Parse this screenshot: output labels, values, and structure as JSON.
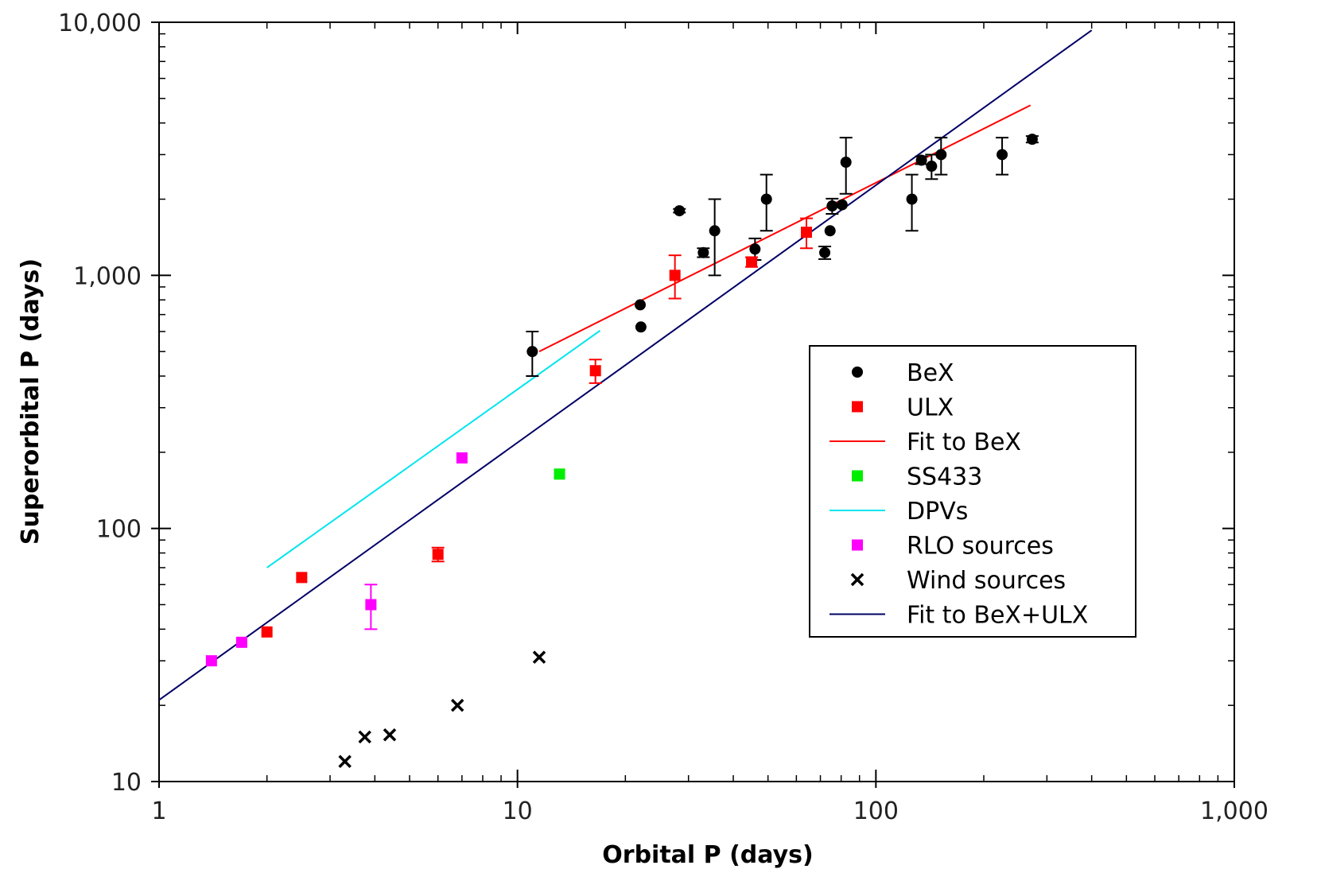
{
  "chart_data": {
    "type": "scatter",
    "title": "",
    "xlabel": "Orbital P (days)",
    "ylabel": "Superorbital P (days)",
    "xscale": "log",
    "yscale": "log",
    "xlim": [
      1,
      1000
    ],
    "ylim": [
      10,
      10000
    ],
    "x_ticks": [
      {
        "value": 1,
        "label": "1"
      },
      {
        "value": 10,
        "label": "10"
      },
      {
        "value": 100,
        "label": "100"
      },
      {
        "value": 1000,
        "label": "1,000"
      }
    ],
    "y_ticks": [
      {
        "value": 10,
        "label": "10"
      },
      {
        "value": 100,
        "label": "100"
      },
      {
        "value": 1000,
        "label": "1,000"
      },
      {
        "value": 10000,
        "label": "10,000"
      }
    ],
    "grid": false,
    "legend_position": "right",
    "series": [
      {
        "name": "BeX",
        "kind": "points",
        "marker": "circle",
        "color": "#000000",
        "points": [
          {
            "x": 11.0,
            "y": 500,
            "yerr_low": 400,
            "yerr_high": 600
          },
          {
            "x": 22.0,
            "y": 765
          },
          {
            "x": 22.1,
            "y": 625
          },
          {
            "x": 28.3,
            "y": 1800,
            "yerr_low": 1770,
            "yerr_high": 1830
          },
          {
            "x": 33.0,
            "y": 1230,
            "yerr_low": 1180,
            "yerr_high": 1280
          },
          {
            "x": 35.5,
            "y": 1500,
            "yerr_low": 1000,
            "yerr_high": 2000
          },
          {
            "x": 46.0,
            "y": 1270,
            "yerr_low": 1150,
            "yerr_high": 1400
          },
          {
            "x": 49.5,
            "y": 2000,
            "yerr_low": 1500,
            "yerr_high": 2500
          },
          {
            "x": 72.0,
            "y": 1230,
            "yerr_low": 1160,
            "yerr_high": 1300
          },
          {
            "x": 74.5,
            "y": 1500
          },
          {
            "x": 75.5,
            "y": 1880,
            "yerr_low": 1750,
            "yerr_high": 2010
          },
          {
            "x": 80.5,
            "y": 1900
          },
          {
            "x": 82.5,
            "y": 2800,
            "yerr_low": 2100,
            "yerr_high": 3500
          },
          {
            "x": 126.0,
            "y": 2000,
            "yerr_low": 1500,
            "yerr_high": 2500
          },
          {
            "x": 134.0,
            "y": 2850,
            "yerr_low": 2750,
            "yerr_high": 2950
          },
          {
            "x": 143.0,
            "y": 2700,
            "yerr_low": 2400,
            "yerr_high": 3000
          },
          {
            "x": 152.0,
            "y": 3000,
            "yerr_low": 2500,
            "yerr_high": 3500
          },
          {
            "x": 225.0,
            "y": 3000,
            "yerr_low": 2500,
            "yerr_high": 3500
          },
          {
            "x": 273.0,
            "y": 3450,
            "yerr_low": 3350,
            "yerr_high": 3550
          }
        ]
      },
      {
        "name": "ULX",
        "kind": "points",
        "marker": "square",
        "color": "#ff0000",
        "points": [
          {
            "x": 2.0,
            "y": 39
          },
          {
            "x": 2.5,
            "y": 64
          },
          {
            "x": 6.0,
            "y": 79,
            "yerr_low": 74,
            "yerr_high": 84
          },
          {
            "x": 16.5,
            "y": 420,
            "yerr_low": 375,
            "yerr_high": 465
          },
          {
            "x": 27.5,
            "y": 1000,
            "yerr_low": 810,
            "yerr_high": 1200
          },
          {
            "x": 45.0,
            "y": 1130,
            "yerr_low": 1080,
            "yerr_high": 1180
          },
          {
            "x": 64.0,
            "y": 1480,
            "yerr_low": 1280,
            "yerr_high": 1680
          }
        ]
      },
      {
        "name": "Fit to BeX",
        "kind": "line",
        "color": "#ff0000",
        "line": [
          [
            11.5,
            500
          ],
          [
            270,
            4700
          ]
        ]
      },
      {
        "name": "SS433",
        "kind": "points",
        "marker": "square",
        "color": "#00ee00",
        "points": [
          {
            "x": 13.1,
            "y": 164
          }
        ]
      },
      {
        "name": "DPVs",
        "kind": "line",
        "color": "#00e5ee",
        "line": [
          [
            2.0,
            70
          ],
          [
            17.0,
            605
          ]
        ]
      },
      {
        "name": "RLO sources",
        "kind": "points",
        "marker": "square",
        "color": "#ff00ff",
        "points": [
          {
            "x": 1.4,
            "y": 30
          },
          {
            "x": 1.7,
            "y": 35.5
          },
          {
            "x": 3.9,
            "y": 50,
            "yerr_low": 40,
            "yerr_high": 60
          },
          {
            "x": 7.0,
            "y": 190
          }
        ]
      },
      {
        "name": "Wind sources",
        "kind": "points",
        "marker": "cross",
        "color": "#000000",
        "points": [
          {
            "x": 3.3,
            "y": 12
          },
          {
            "x": 3.75,
            "y": 15
          },
          {
            "x": 4.4,
            "y": 15.3
          },
          {
            "x": 6.8,
            "y": 20
          },
          {
            "x": 11.5,
            "y": 31
          }
        ]
      },
      {
        "name": "Fit to BeX+ULX",
        "kind": "line",
        "color": "#000066",
        "line": [
          [
            1.0,
            21
          ],
          [
            400,
            9300
          ]
        ]
      }
    ]
  }
}
